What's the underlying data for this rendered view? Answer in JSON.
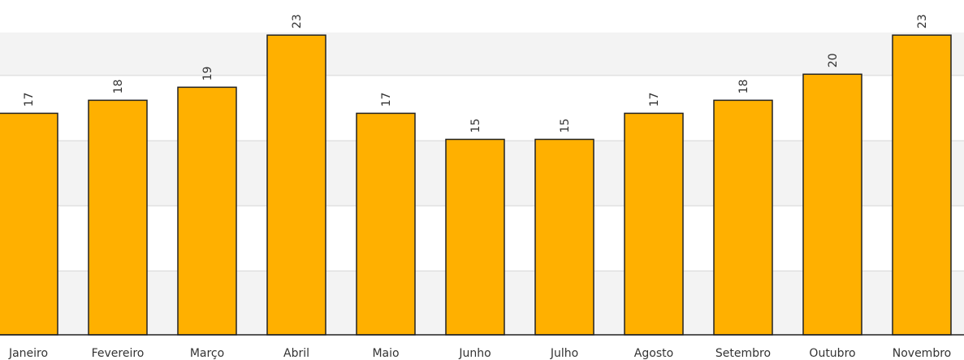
{
  "chart_data": {
    "type": "bar",
    "title": "",
    "categories": [
      "Janeiro",
      "Fevereiro",
      "Março",
      "Abril",
      "Maio",
      "Junho",
      "Julho",
      "Agosto",
      "Setembro",
      "Outubro",
      "Novembro"
    ],
    "values": [
      17,
      18,
      19,
      23,
      17,
      15,
      15,
      17,
      18,
      20,
      23
    ],
    "ylim": [
      0,
      23.2
    ],
    "grid": true,
    "bar_color": "#FFB000",
    "bar_edge_color": "#222222",
    "band_color": "#F3F3F3",
    "gridline_color": "#D6D6D6"
  }
}
